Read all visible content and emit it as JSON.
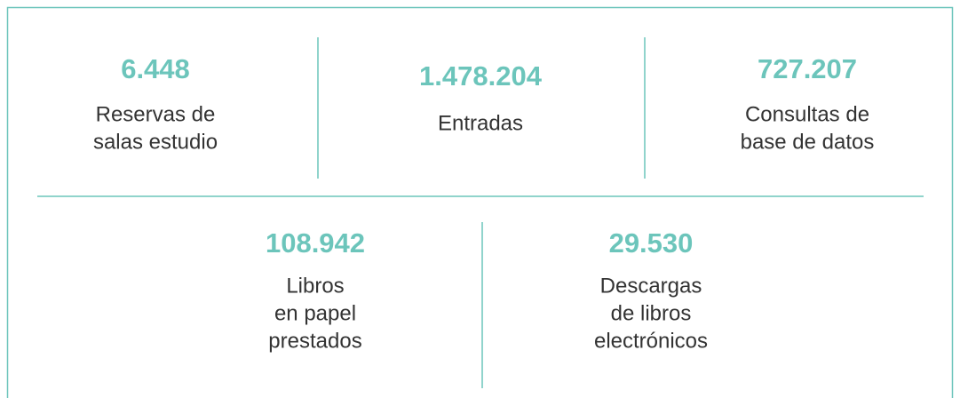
{
  "stats": [
    {
      "value": "6.448",
      "label": [
        "Reservas de",
        "salas estudio"
      ]
    },
    {
      "value": "1.478.204",
      "label": [
        "Entradas"
      ]
    },
    {
      "value": "727.207",
      "label": [
        "Consultas de",
        "base de datos"
      ]
    },
    {
      "value": "108.942",
      "label": [
        "Libros",
        "en papel",
        "prestados"
      ]
    },
    {
      "value": "29.530",
      "label": [
        "Descargas",
        "de libros",
        "electrónicos"
      ]
    }
  ]
}
